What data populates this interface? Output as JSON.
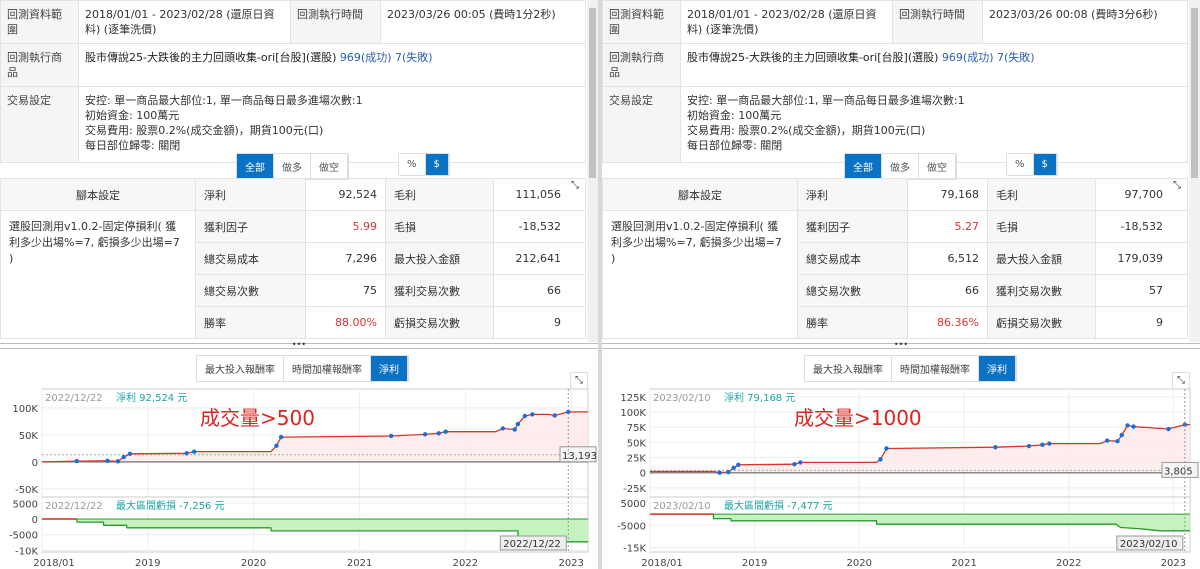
{
  "colors": {
    "accent": "#0a72c4",
    "profit_line": "#d9362b",
    "drawdown_fill": "#c6f2c0",
    "drawdown_line": "#2a9a2a",
    "trade_marker": "#1a6fd6",
    "info_text": "#1aa3a3"
  },
  "panels": [
    {
      "range_label": "回測資料範圍",
      "range_value": "2018/01/01 - 2023/02/28 (還原日資料) (逐筆洗價)",
      "run_time_label": "回測執行時間",
      "run_time_value": "2023/03/26 00:05 (費時1分2秒)",
      "product_label": "回測執行商品",
      "product_value": "股市傳說25-大跌後的主力回頭收集-ori[台股](選股)",
      "success": "969(成功)",
      "fail": "7(失敗)",
      "settings_label": "交易設定",
      "settings_lines": [
        "安控: 單一商品最大部位:1, 單一商品每日最多進場次數:1",
        "初始資金: 100萬元",
        "交易費用: 股票0.2%(成交金額)，期貨100元(口)",
        "每日部位歸零: 關閉"
      ],
      "filter_buttons": [
        "全部",
        "做多",
        "做空"
      ],
      "unit_buttons": [
        "%",
        "$"
      ],
      "script_header": "腳本設定",
      "script_desc": "選股回測用v1.0.2-固定停損利( 獲利多少出場%=7, 虧損多少出場=7 )",
      "stats": [
        [
          "淨利",
          "92,524",
          "毛利",
          "111,056"
        ],
        [
          "獲利因子",
          "5.99",
          "毛損",
          "-18,532"
        ],
        [
          "總交易成本",
          "7,296",
          "最大投入金額",
          "212,641"
        ],
        [
          "總交易次數",
          "75",
          "獲利交易次數",
          "66"
        ],
        [
          "勝率",
          "88.00%",
          "虧損交易次數",
          "9"
        ]
      ],
      "chart_tabs": [
        "最大投入報酬率",
        "時間加權報酬率",
        "淨利"
      ],
      "annotation": "成交量>500",
      "chart_data": {
        "type": "line",
        "x_ticks": [
          "2018/01",
          "2019",
          "2020",
          "2021",
          "2022",
          "2023"
        ],
        "xlim": [
          "2018-01-01",
          "2023-02-28"
        ],
        "top": {
          "y_ticks": [
            "100K",
            "50K",
            "0",
            "-50K"
          ],
          "ylim": [
            -65000,
            135000
          ],
          "info_date": "2022/12/22",
          "info_label": "淨利 92,524 元",
          "ref_value": "13,193",
          "series": [
            [
              "2018-01-01",
              0
            ],
            [
              "2018-05-01",
              1500
            ],
            [
              "2018-08-15",
              2000
            ],
            [
              "2018-09-20",
              1000
            ],
            [
              "2018-10-10",
              9000
            ],
            [
              "2018-11-01",
              15000
            ],
            [
              "2019-05-15",
              16000
            ],
            [
              "2019-06-10",
              19000
            ],
            [
              "2020-03-01",
              19000
            ],
            [
              "2020-03-20",
              30000
            ],
            [
              "2020-04-05",
              46000
            ],
            [
              "2021-04-20",
              48000
            ],
            [
              "2021-08-15",
              51000
            ],
            [
              "2021-10-01",
              53000
            ],
            [
              "2021-10-25",
              56000
            ],
            [
              "2022-04-15",
              56000
            ],
            [
              "2022-05-10",
              62000
            ],
            [
              "2022-06-20",
              60000
            ],
            [
              "2022-07-01",
              70000
            ],
            [
              "2022-07-25",
              85000
            ],
            [
              "2022-08-20",
              88000
            ],
            [
              "2022-10-15",
              88000
            ],
            [
              "2022-11-05",
              86000
            ],
            [
              "2022-12-22",
              92524
            ],
            [
              "2023-02-28",
              92524
            ]
          ]
        },
        "bottom": {
          "y_ticks": [
            "5000",
            "0",
            "-5000",
            "-10K"
          ],
          "ylim": [
            -10500,
            7000
          ],
          "info_date": "2022/12/22",
          "info_label": "最大區間虧損 -7,256 元",
          "series": [
            [
              "2018-01-01",
              0
            ],
            [
              "2018-05-01",
              0
            ],
            [
              "2018-05-02",
              -1000
            ],
            [
              "2018-08-01",
              -1000
            ],
            [
              "2018-08-02",
              -2000
            ],
            [
              "2018-10-20",
              -2000
            ],
            [
              "2018-10-21",
              -2800
            ],
            [
              "2020-03-01",
              -2800
            ],
            [
              "2020-03-02",
              -3800
            ],
            [
              "2022-07-01",
              -3800
            ],
            [
              "2022-07-02",
              -7256
            ],
            [
              "2023-02-28",
              -7256
            ]
          ]
        },
        "cursor_date": "2022/12/22"
      }
    },
    {
      "range_label": "回測資料範圍",
      "range_value": "2018/01/01 - 2023/02/28 (還原日資料) (逐筆洗價)",
      "run_time_label": "回測執行時間",
      "run_time_value": "2023/03/26 00:08 (費時3分6秒)",
      "product_label": "回測執行商品",
      "product_value": "股市傳說25-大跌後的主力回頭收集-ori[台股](選股)",
      "success": "969(成功)",
      "fail": "7(失敗)",
      "settings_label": "交易設定",
      "settings_lines": [
        "安控: 單一商品最大部位:1, 單一商品每日最多進場次數:1",
        "初始資金: 100萬元",
        "交易費用: 股票0.2%(成交金額)，期貨100元(口)",
        "每日部位歸零: 關閉"
      ],
      "filter_buttons": [
        "全部",
        "做多",
        "做空"
      ],
      "unit_buttons": [
        "%",
        "$"
      ],
      "script_header": "腳本設定",
      "script_desc": "選股回測用v1.0.2-固定停損利( 獲利多少出場%=7, 虧損多少出場=7 )",
      "stats": [
        [
          "淨利",
          "79,168",
          "毛利",
          "97,700"
        ],
        [
          "獲利因子",
          "5.27",
          "毛損",
          "-18,532"
        ],
        [
          "總交易成本",
          "6,512",
          "最大投入金額",
          "179,039"
        ],
        [
          "總交易次數",
          "66",
          "獲利交易次數",
          "57"
        ],
        [
          "勝率",
          "86.36%",
          "虧損交易次數",
          "9"
        ]
      ],
      "chart_tabs": [
        "最大投入報酬率",
        "時間加權報酬率",
        "淨利"
      ],
      "annotation": "成交量>1000",
      "chart_data": {
        "type": "line",
        "x_ticks": [
          "2018/01",
          "2019",
          "2020",
          "2021",
          "2022",
          "2023"
        ],
        "xlim": [
          "2018-01-01",
          "2023-02-28"
        ],
        "top": {
          "y_ticks": [
            "125K",
            "100K",
            "75K",
            "50K",
            "25K",
            "0",
            "-25K"
          ],
          "ylim": [
            -40000,
            138000
          ],
          "info_date": "2023/02/10",
          "info_label": "淨利 79,168 元",
          "ref_value": "3,805",
          "series": [
            [
              "2018-01-01",
              2000
            ],
            [
              "2018-08-10",
              2000
            ],
            [
              "2018-09-01",
              0
            ],
            [
              "2018-10-01",
              1000
            ],
            [
              "2018-10-20",
              8000
            ],
            [
              "2018-11-05",
              13000
            ],
            [
              "2019-05-20",
              14000
            ],
            [
              "2019-06-10",
              17000
            ],
            [
              "2020-03-01",
              17000
            ],
            [
              "2020-03-15",
              22000
            ],
            [
              "2020-04-05",
              40000
            ],
            [
              "2021-04-20",
              42000
            ],
            [
              "2021-08-15",
              44000
            ],
            [
              "2021-10-01",
              46000
            ],
            [
              "2021-10-25",
              48000
            ],
            [
              "2022-04-20",
              48000
            ],
            [
              "2022-05-15",
              53000
            ],
            [
              "2022-06-20",
              52000
            ],
            [
              "2022-07-05",
              62000
            ],
            [
              "2022-07-25",
              78000
            ],
            [
              "2022-08-15",
              76000
            ],
            [
              "2022-12-15",
              72000
            ],
            [
              "2023-02-10",
              79168
            ],
            [
              "2023-02-28",
              79168
            ]
          ]
        },
        "bottom": {
          "y_ticks": [
            "5000",
            "-5000",
            "-15K"
          ],
          "ylim": [
            -17000,
            7700
          ],
          "info_date": "2023/02/10",
          "info_label": "最大區間虧損 -7,477 元",
          "series": [
            [
              "2018-01-01",
              0
            ],
            [
              "2018-08-10",
              0
            ],
            [
              "2018-08-11",
              -2000
            ],
            [
              "2018-10-10",
              -2000
            ],
            [
              "2018-10-11",
              -3000
            ],
            [
              "2020-03-01",
              -3000
            ],
            [
              "2020-03-02",
              -4500
            ],
            [
              "2022-06-15",
              -4500
            ],
            [
              "2022-07-01",
              -6000
            ],
            [
              "2022-09-01",
              -6500
            ],
            [
              "2022-11-15",
              -7477
            ],
            [
              "2023-02-28",
              -7477
            ]
          ]
        },
        "cursor_date": "2023/02/10"
      }
    }
  ]
}
